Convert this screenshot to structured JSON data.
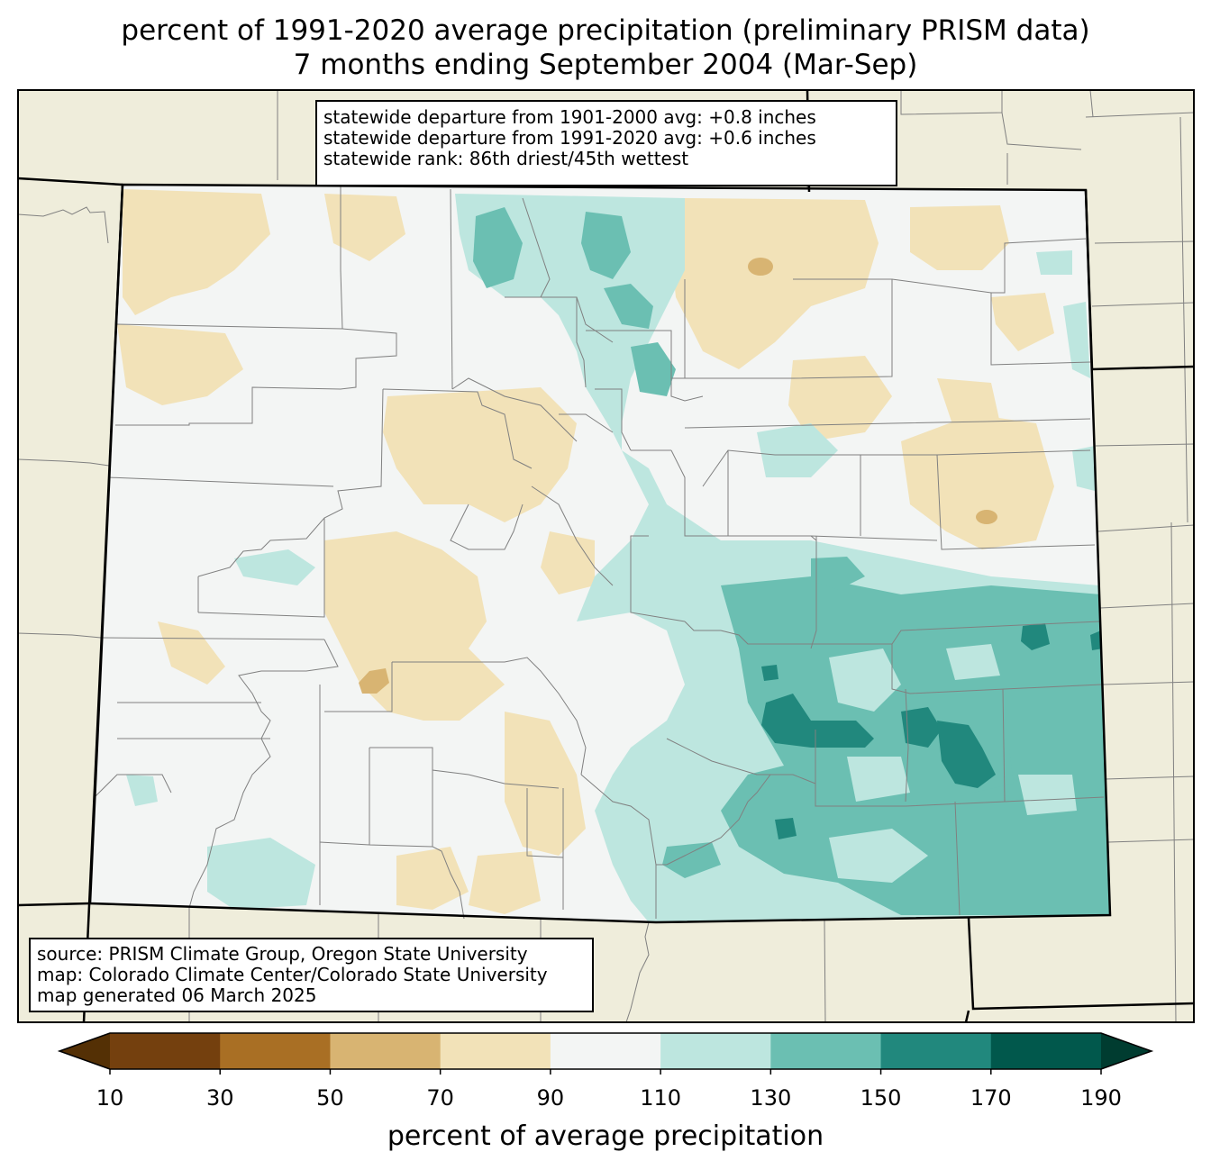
{
  "title": {
    "line1": "percent of 1991-2020 average precipitation (preliminary PRISM data)",
    "line2": "7 months ending September 2004 (Mar-Sep)"
  },
  "stats": {
    "departure_1901_2000": "statewide departure from 1901-2000 avg: +0.8 inches",
    "departure_1991_2020": "statewide departure from 1991-2020 avg: +0.6 inches",
    "rank": "statewide rank: 86th driest/45th wettest"
  },
  "source": {
    "data": "source: PRISM Climate Group, Oregon State University",
    "map": "map: Colorado Climate Center/Colorado State University",
    "generated": "map generated 06 March 2025"
  },
  "colorbar": {
    "label": "percent of average precipitation",
    "ticks": [
      "10",
      "30",
      "50",
      "70",
      "90",
      "110",
      "130",
      "150",
      "170",
      "190"
    ],
    "bins": [
      {
        "range": "10-30",
        "color": "#74400e"
      },
      {
        "range": "30-50",
        "color": "#a96f24"
      },
      {
        "range": "50-70",
        "color": "#d8b472"
      },
      {
        "range": "70-90",
        "color": "#f2e2b8"
      },
      {
        "range": "90-110",
        "color": "#f3f5f4"
      },
      {
        "range": "110-130",
        "color": "#bde6df"
      },
      {
        "range": "130-150",
        "color": "#6bbfb2"
      },
      {
        "range": "150-170",
        "color": "#21887d"
      },
      {
        "range": "170-190",
        "color": "#01584c"
      }
    ],
    "under_color": "#543005",
    "over_color": "#003c30"
  },
  "colors": {
    "land_outside": "#efeddb",
    "state_border": "#000000",
    "county_lines": "#808080"
  }
}
